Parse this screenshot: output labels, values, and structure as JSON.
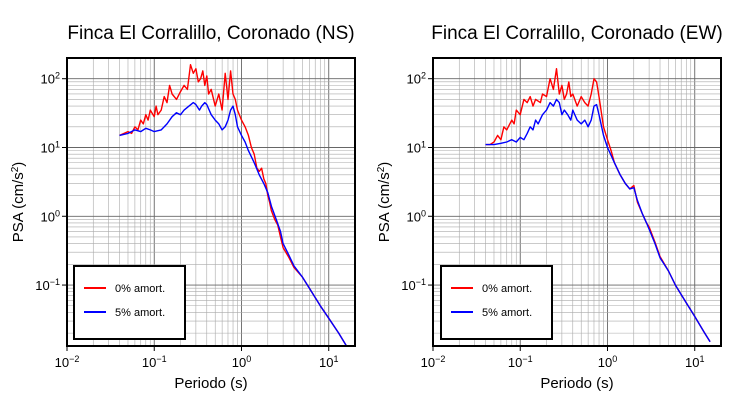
{
  "chart_data": [
    {
      "type": "line",
      "title": "Finca El Corralillo, Coronado (NS)",
      "xlabel": "Periodo (s)",
      "ylabel": "PSA (cm/s²)",
      "xscale": "log",
      "yscale": "log",
      "xlim": [
        0.01,
        20
      ],
      "ylim": [
        0.013,
        200
      ],
      "xticks": [
        {
          "base": "10",
          "exp": "−2",
          "value": 0.01
        },
        {
          "base": "10",
          "exp": "−1",
          "value": 0.1
        },
        {
          "base": "10",
          "exp": "0",
          "value": 1
        },
        {
          "base": "10",
          "exp": "1",
          "value": 10
        }
      ],
      "yticks": [
        {
          "base": "10",
          "exp": "−1",
          "value": 0.1
        },
        {
          "base": "10",
          "exp": "0",
          "value": 1
        },
        {
          "base": "10",
          "exp": "1",
          "value": 10
        },
        {
          "base": "10",
          "exp": "2",
          "value": 100
        }
      ],
      "grid": true,
      "legend_position": "bottom-left",
      "series": [
        {
          "name": "0% amort.",
          "color": "#ff0000",
          "points": [
            [
              0.04,
              15
            ],
            [
              0.045,
              16
            ],
            [
              0.05,
              17
            ],
            [
              0.055,
              16
            ],
            [
              0.06,
              20
            ],
            [
              0.065,
              18
            ],
            [
              0.07,
              25
            ],
            [
              0.075,
              22
            ],
            [
              0.08,
              30
            ],
            [
              0.085,
              25
            ],
            [
              0.09,
              35
            ],
            [
              0.1,
              28
            ],
            [
              0.105,
              40
            ],
            [
              0.11,
              30
            ],
            [
              0.12,
              35
            ],
            [
              0.13,
              55
            ],
            [
              0.14,
              45
            ],
            [
              0.15,
              80
            ],
            [
              0.16,
              60
            ],
            [
              0.18,
              50
            ],
            [
              0.2,
              65
            ],
            [
              0.22,
              80
            ],
            [
              0.24,
              70
            ],
            [
              0.26,
              160
            ],
            [
              0.28,
              120
            ],
            [
              0.3,
              140
            ],
            [
              0.32,
              90
            ],
            [
              0.34,
              100
            ],
            [
              0.36,
              130
            ],
            [
              0.38,
              80
            ],
            [
              0.4,
              110
            ],
            [
              0.42,
              60
            ],
            [
              0.45,
              70
            ],
            [
              0.5,
              40
            ],
            [
              0.55,
              60
            ],
            [
              0.6,
              35
            ],
            [
              0.65,
              120
            ],
            [
              0.7,
              50
            ],
            [
              0.75,
              130
            ],
            [
              0.8,
              60
            ],
            [
              0.85,
              50
            ],
            [
              0.9,
              35
            ],
            [
              1.0,
              25
            ],
            [
              1.1,
              20
            ],
            [
              1.2,
              15
            ],
            [
              1.3,
              10
            ],
            [
              1.4,
              8
            ],
            [
              1.5,
              5
            ],
            [
              1.6,
              4.5
            ],
            [
              1.7,
              5
            ],
            [
              1.8,
              3.5
            ],
            [
              1.9,
              3
            ],
            [
              2.0,
              2
            ],
            [
              2.1,
              1.6
            ],
            [
              2.2,
              1.2
            ],
            [
              2.4,
              0.9
            ],
            [
              2.6,
              0.75
            ],
            [
              2.8,
              0.5
            ],
            [
              3.0,
              0.35
            ],
            [
              3.5,
              0.25
            ],
            [
              4,
              0.18
            ],
            [
              5,
              0.13
            ],
            [
              6,
              0.09
            ],
            [
              8,
              0.05
            ],
            [
              10,
              0.033
            ],
            [
              13,
              0.02
            ],
            [
              16,
              0.013
            ]
          ]
        },
        {
          "name": "5% amort.",
          "color": "#0000ff",
          "points": [
            [
              0.04,
              15
            ],
            [
              0.05,
              16
            ],
            [
              0.06,
              18
            ],
            [
              0.07,
              17
            ],
            [
              0.08,
              19
            ],
            [
              0.09,
              18
            ],
            [
              0.1,
              17
            ],
            [
              0.12,
              18
            ],
            [
              0.14,
              22
            ],
            [
              0.16,
              28
            ],
            [
              0.18,
              32
            ],
            [
              0.2,
              30
            ],
            [
              0.22,
              35
            ],
            [
              0.25,
              40
            ],
            [
              0.28,
              45
            ],
            [
              0.3,
              42
            ],
            [
              0.33,
              35
            ],
            [
              0.35,
              40
            ],
            [
              0.38,
              45
            ],
            [
              0.4,
              42
            ],
            [
              0.45,
              30
            ],
            [
              0.5,
              25
            ],
            [
              0.55,
              22
            ],
            [
              0.6,
              18
            ],
            [
              0.65,
              20
            ],
            [
              0.7,
              25
            ],
            [
              0.75,
              35
            ],
            [
              0.8,
              40
            ],
            [
              0.85,
              30
            ],
            [
              0.9,
              20
            ],
            [
              1.0,
              15
            ],
            [
              1.1,
              12
            ],
            [
              1.2,
              9
            ],
            [
              1.4,
              6
            ],
            [
              1.6,
              4
            ],
            [
              1.8,
              3
            ],
            [
              2.0,
              2.2
            ],
            [
              2.2,
              1.4
            ],
            [
              2.5,
              0.9
            ],
            [
              2.8,
              0.6
            ],
            [
              3.0,
              0.4
            ],
            [
              3.5,
              0.27
            ],
            [
              4,
              0.19
            ],
            [
              5,
              0.13
            ],
            [
              6,
              0.09
            ],
            [
              8,
              0.05
            ],
            [
              10,
              0.033
            ],
            [
              13,
              0.02
            ],
            [
              16,
              0.013
            ]
          ]
        }
      ]
    },
    {
      "type": "line",
      "title": "Finca El Corralillo, Coronado (EW)",
      "xlabel": "Periodo (s)",
      "ylabel": "PSA (cm/s²)",
      "xscale": "log",
      "yscale": "log",
      "xlim": [
        0.01,
        20
      ],
      "ylim": [
        0.013,
        200
      ],
      "xticks": [
        {
          "base": "10",
          "exp": "−2",
          "value": 0.01
        },
        {
          "base": "10",
          "exp": "−1",
          "value": 0.1
        },
        {
          "base": "10",
          "exp": "0",
          "value": 1
        },
        {
          "base": "10",
          "exp": "1",
          "value": 10
        }
      ],
      "yticks": [
        {
          "base": "10",
          "exp": "−1",
          "value": 0.1
        },
        {
          "base": "10",
          "exp": "0",
          "value": 1
        },
        {
          "base": "10",
          "exp": "1",
          "value": 10
        },
        {
          "base": "10",
          "exp": "2",
          "value": 100
        }
      ],
      "grid": true,
      "legend_position": "bottom-left",
      "series": [
        {
          "name": "0% amort.",
          "color": "#ff0000",
          "points": [
            [
              0.04,
              11
            ],
            [
              0.045,
              11
            ],
            [
              0.05,
              12
            ],
            [
              0.055,
              15
            ],
            [
              0.06,
              13
            ],
            [
              0.065,
              20
            ],
            [
              0.07,
              18
            ],
            [
              0.08,
              25
            ],
            [
              0.085,
              22
            ],
            [
              0.09,
              35
            ],
            [
              0.1,
              30
            ],
            [
              0.11,
              50
            ],
            [
              0.12,
              45
            ],
            [
              0.13,
              55
            ],
            [
              0.14,
              40
            ],
            [
              0.15,
              50
            ],
            [
              0.17,
              45
            ],
            [
              0.18,
              60
            ],
            [
              0.2,
              55
            ],
            [
              0.22,
              100
            ],
            [
              0.24,
              70
            ],
            [
              0.26,
              140
            ],
            [
              0.28,
              60
            ],
            [
              0.3,
              80
            ],
            [
              0.32,
              50
            ],
            [
              0.34,
              60
            ],
            [
              0.36,
              90
            ],
            [
              0.38,
              55
            ],
            [
              0.4,
              60
            ],
            [
              0.45,
              40
            ],
            [
              0.5,
              55
            ],
            [
              0.55,
              45
            ],
            [
              0.6,
              40
            ],
            [
              0.65,
              60
            ],
            [
              0.7,
              100
            ],
            [
              0.75,
              90
            ],
            [
              0.8,
              55
            ],
            [
              0.9,
              20
            ],
            [
              1.0,
              13
            ],
            [
              1.1,
              9
            ],
            [
              1.2,
              6
            ],
            [
              1.4,
              4
            ],
            [
              1.6,
              3
            ],
            [
              1.8,
              2.5
            ],
            [
              2.0,
              2.8
            ],
            [
              2.2,
              1.6
            ],
            [
              2.5,
              1.1
            ],
            [
              2.8,
              0.8
            ],
            [
              3.0,
              0.7
            ],
            [
              3.5,
              0.42
            ],
            [
              4,
              0.26
            ],
            [
              5,
              0.16
            ],
            [
              6,
              0.1
            ],
            [
              8,
              0.055
            ],
            [
              10,
              0.035
            ],
            [
              13,
              0.02
            ],
            [
              15,
              0.015
            ]
          ]
        },
        {
          "name": "5% amort.",
          "color": "#0000ff",
          "points": [
            [
              0.04,
              11
            ],
            [
              0.05,
              11
            ],
            [
              0.06,
              11.5
            ],
            [
              0.07,
              12
            ],
            [
              0.08,
              13
            ],
            [
              0.09,
              12
            ],
            [
              0.1,
              14
            ],
            [
              0.11,
              13
            ],
            [
              0.12,
              16
            ],
            [
              0.13,
              20
            ],
            [
              0.14,
              18
            ],
            [
              0.15,
              25
            ],
            [
              0.16,
              22
            ],
            [
              0.18,
              30
            ],
            [
              0.2,
              35
            ],
            [
              0.22,
              45
            ],
            [
              0.24,
              40
            ],
            [
              0.26,
              50
            ],
            [
              0.28,
              45
            ],
            [
              0.3,
              30
            ],
            [
              0.32,
              35
            ],
            [
              0.35,
              30
            ],
            [
              0.38,
              25
            ],
            [
              0.4,
              35
            ],
            [
              0.45,
              25
            ],
            [
              0.5,
              22
            ],
            [
              0.55,
              25
            ],
            [
              0.6,
              20
            ],
            [
              0.65,
              25
            ],
            [
              0.7,
              40
            ],
            [
              0.75,
              42
            ],
            [
              0.8,
              30
            ],
            [
              0.9,
              15
            ],
            [
              1.0,
              10
            ],
            [
              1.2,
              6
            ],
            [
              1.4,
              4
            ],
            [
              1.6,
              3
            ],
            [
              1.8,
              2.5
            ],
            [
              2.0,
              2.6
            ],
            [
              2.2,
              1.7
            ],
            [
              2.5,
              1.1
            ],
            [
              2.8,
              0.8
            ],
            [
              3.0,
              0.65
            ],
            [
              3.5,
              0.4
            ],
            [
              4,
              0.25
            ],
            [
              5,
              0.16
            ],
            [
              6,
              0.1
            ],
            [
              8,
              0.055
            ],
            [
              10,
              0.035
            ],
            [
              13,
              0.02
            ],
            [
              15,
              0.015
            ]
          ]
        }
      ]
    }
  ]
}
